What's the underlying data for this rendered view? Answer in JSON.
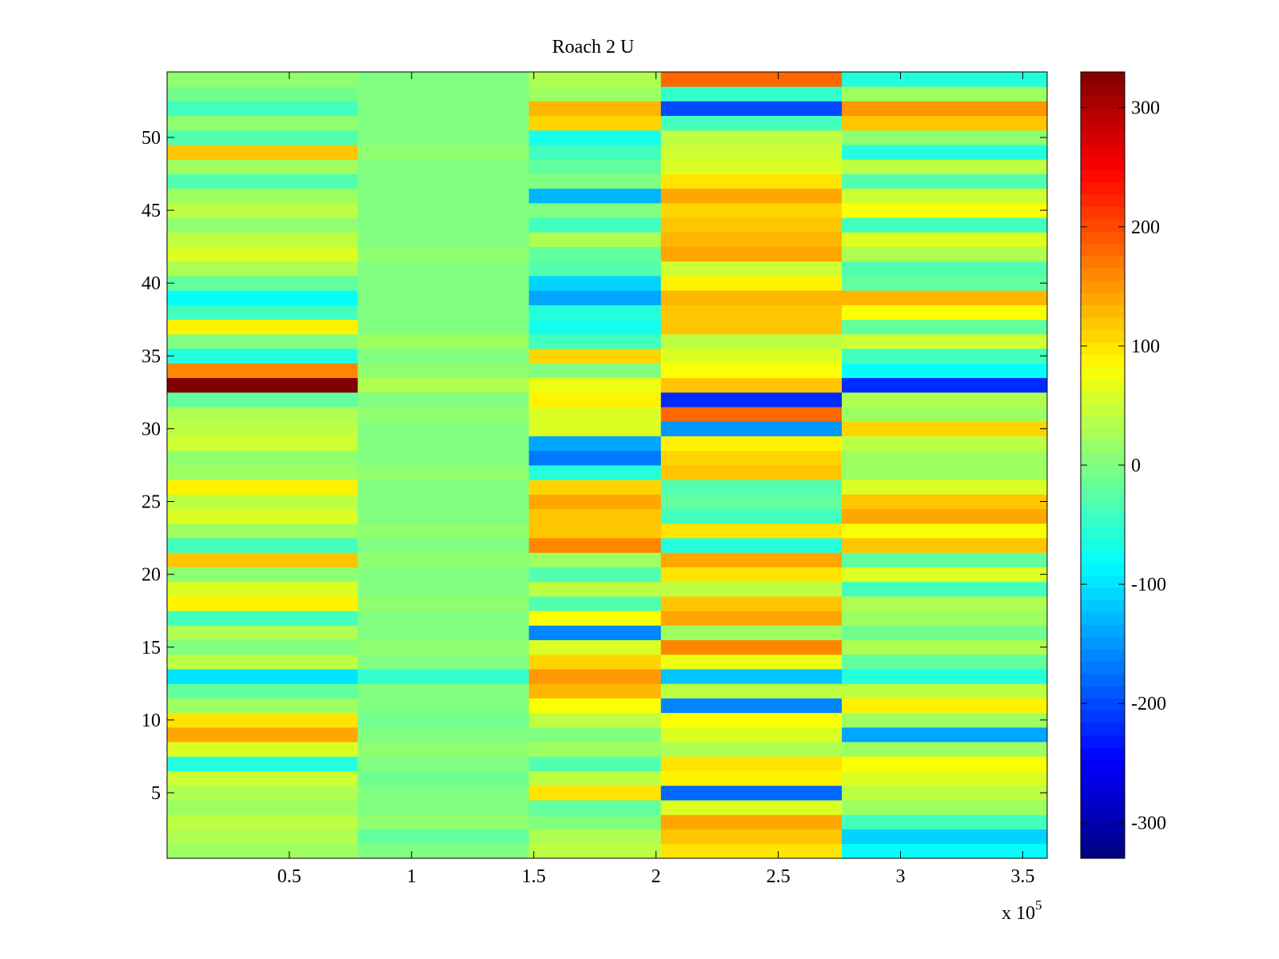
{
  "chart_data": {
    "type": "heatmap",
    "title": "Roach 2 U",
    "xlabel": "",
    "ylabel": "",
    "xlim": [
      0,
      360000
    ],
    "ylim": [
      0.5,
      54.5
    ],
    "x_exponent_label": "x 10",
    "x_exponent_power": "5",
    "x_ticks": [
      {
        "value": 50000,
        "label": "0.5"
      },
      {
        "value": 100000,
        "label": "1"
      },
      {
        "value": 150000,
        "label": "1.5"
      },
      {
        "value": 200000,
        "label": "2"
      },
      {
        "value": 250000,
        "label": "2.5"
      },
      {
        "value": 300000,
        "label": "3"
      },
      {
        "value": 350000,
        "label": "3.5"
      }
    ],
    "y_ticks": [
      {
        "value": 5,
        "label": "5"
      },
      {
        "value": 10,
        "label": "10"
      },
      {
        "value": 15,
        "label": "15"
      },
      {
        "value": 20,
        "label": "20"
      },
      {
        "value": 25,
        "label": "25"
      },
      {
        "value": 30,
        "label": "30"
      },
      {
        "value": 35,
        "label": "35"
      },
      {
        "value": 40,
        "label": "40"
      },
      {
        "value": 45,
        "label": "45"
      },
      {
        "value": 50,
        "label": "50"
      }
    ],
    "colorbar": {
      "colormap": "jet",
      "range": [
        -330,
        330
      ],
      "ticks": [
        {
          "value": 300,
          "label": "300"
        },
        {
          "value": 200,
          "label": "200"
        },
        {
          "value": 100,
          "label": "100"
        },
        {
          "value": 0,
          "label": "0"
        },
        {
          "value": -100,
          "label": "-100"
        },
        {
          "value": -200,
          "label": "-200"
        },
        {
          "value": -300,
          "label": "-300"
        }
      ]
    },
    "rows": 54,
    "x_segments": [
      {
        "x_start": 0,
        "x_end": 78000
      },
      {
        "x_start": 78000,
        "x_end": 148000
      },
      {
        "x_start": 148000,
        "x_end": 202000
      },
      {
        "x_start": 202000,
        "x_end": 276000
      },
      {
        "x_start": 276000,
        "x_end": 360000
      }
    ],
    "values": [
      [
        20,
        0,
        40,
        100,
        -80
      ],
      [
        30,
        -20,
        30,
        120,
        -110
      ],
      [
        40,
        10,
        0,
        140,
        -40
      ],
      [
        20,
        0,
        -20,
        60,
        20
      ],
      [
        30,
        0,
        100,
        -180,
        40
      ],
      [
        50,
        -10,
        40,
        90,
        60
      ],
      [
        -60,
        0,
        -30,
        100,
        80
      ],
      [
        60,
        10,
        20,
        30,
        20
      ],
      [
        140,
        0,
        0,
        60,
        -140
      ],
      [
        100,
        -10,
        40,
        80,
        20
      ],
      [
        20,
        0,
        80,
        -160,
        90
      ],
      [
        -20,
        0,
        130,
        40,
        40
      ],
      [
        -100,
        -50,
        150,
        -120,
        -60
      ],
      [
        40,
        0,
        110,
        70,
        -20
      ],
      [
        0,
        10,
        60,
        160,
        30
      ],
      [
        30,
        0,
        -160,
        20,
        -10
      ],
      [
        -40,
        0,
        80,
        140,
        20
      ],
      [
        90,
        10,
        -30,
        120,
        30
      ],
      [
        60,
        0,
        40,
        40,
        -40
      ],
      [
        10,
        0,
        -30,
        100,
        60
      ],
      [
        120,
        10,
        20,
        140,
        -20
      ],
      [
        -40,
        0,
        160,
        -60,
        120
      ],
      [
        20,
        10,
        120,
        100,
        80
      ],
      [
        60,
        0,
        120,
        -40,
        140
      ],
      [
        40,
        0,
        140,
        -20,
        120
      ],
      [
        90,
        0,
        110,
        -30,
        60
      ],
      [
        20,
        10,
        -60,
        120,
        20
      ],
      [
        10,
        0,
        -170,
        110,
        20
      ],
      [
        50,
        0,
        -140,
        90,
        40
      ],
      [
        40,
        0,
        60,
        -150,
        110
      ],
      [
        30,
        10,
        60,
        180,
        20
      ],
      [
        -20,
        0,
        90,
        -220,
        30
      ],
      [
        330,
        30,
        70,
        120,
        -220
      ],
      [
        160,
        10,
        0,
        80,
        -80
      ],
      [
        -60,
        0,
        110,
        60,
        -40
      ],
      [
        0,
        20,
        -40,
        40,
        50
      ],
      [
        90,
        0,
        -70,
        120,
        -20
      ],
      [
        -40,
        0,
        -60,
        120,
        80
      ],
      [
        -80,
        0,
        -140,
        130,
        130
      ],
      [
        -20,
        0,
        -110,
        90,
        -20
      ],
      [
        30,
        0,
        -30,
        50,
        -30
      ],
      [
        60,
        10,
        -20,
        140,
        30
      ],
      [
        40,
        0,
        30,
        130,
        60
      ],
      [
        10,
        0,
        -40,
        120,
        -40
      ],
      [
        40,
        0,
        0,
        110,
        80
      ],
      [
        20,
        0,
        -130,
        140,
        50
      ],
      [
        -30,
        0,
        0,
        100,
        -30
      ],
      [
        20,
        0,
        -20,
        60,
        40
      ],
      [
        120,
        10,
        -40,
        50,
        -60
      ],
      [
        -30,
        0,
        -70,
        40,
        10
      ],
      [
        10,
        0,
        110,
        -40,
        120
      ],
      [
        -40,
        0,
        130,
        -200,
        150
      ],
      [
        -10,
        0,
        20,
        -50,
        20
      ],
      [
        10,
        0,
        30,
        180,
        -60
      ]
    ]
  }
}
